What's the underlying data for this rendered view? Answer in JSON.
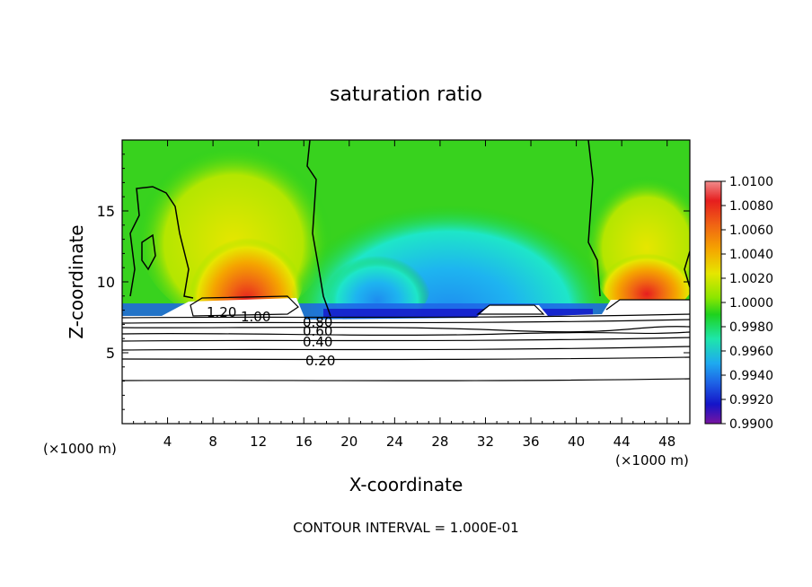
{
  "chart_data": {
    "type": "heatmap",
    "title": "saturation ratio",
    "xlabel": "X-coordinate",
    "ylabel": "Z-coordinate",
    "x_unit_left": "(×1000 m)",
    "x_unit_right": "(×1000 m)",
    "xlim": [
      0,
      50
    ],
    "ylim": [
      0,
      20
    ],
    "x_ticks": [
      4,
      8,
      12,
      16,
      20,
      24,
      28,
      32,
      36,
      40,
      44,
      48
    ],
    "y_ticks": [
      5,
      10,
      15
    ],
    "colorbar": {
      "ticks": [
        "1.0100",
        "1.0080",
        "1.0060",
        "1.0040",
        "1.0020",
        "1.0000",
        "0.9980",
        "0.9960",
        "0.9940",
        "0.9920",
        "0.9900"
      ],
      "colors": [
        "#f08c8c",
        "#e61e1e",
        "#f06414",
        "#f5a500",
        "#e6e600",
        "#8ce600",
        "#1ed21e",
        "#1ee6aa",
        "#1eaaf0",
        "#1e64e6",
        "#1414c8",
        "#3c14a0",
        "#7814a0"
      ]
    },
    "contour_labels": [
      "1.20",
      "1.00",
      "0.80",
      "0.60",
      "0.40",
      "0.20"
    ],
    "footer": "CONTOUR INTERVAL = 1.000E-01"
  }
}
